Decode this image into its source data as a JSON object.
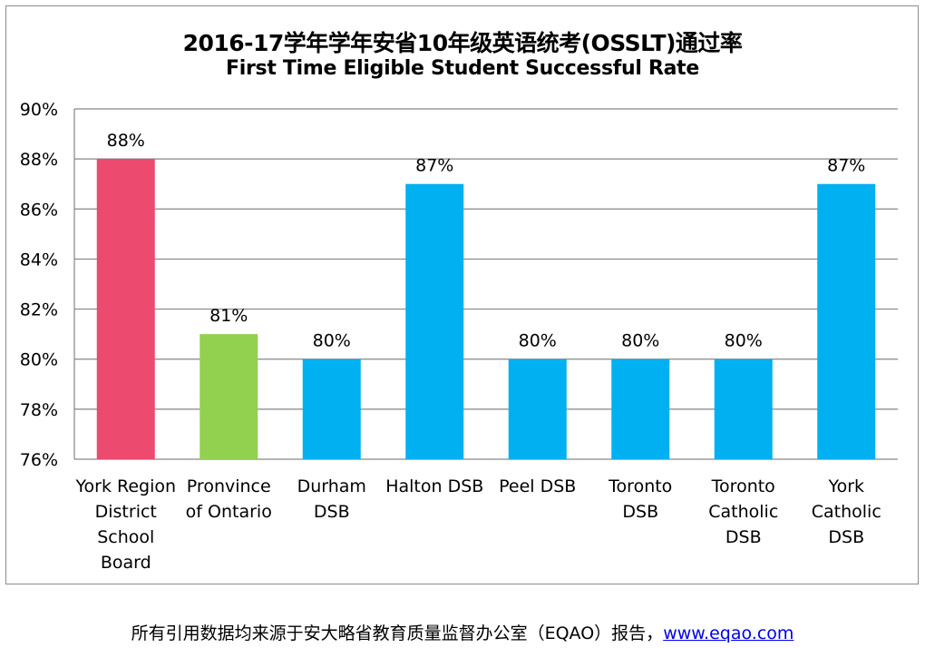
{
  "chart_data": {
    "type": "bar",
    "title": "2016-17学年学年安省10年级英语统考(OSSLT)通过率",
    "subtitle": "First Time Eligible Student Successful Rate",
    "categories": [
      [
        "York Region",
        "District",
        "School",
        "Board"
      ],
      [
        "Pronvince",
        "of Ontario"
      ],
      [
        "Durham",
        "DSB"
      ],
      [
        "Halton DSB"
      ],
      [
        "Peel DSB"
      ],
      [
        "Toronto",
        "DSB"
      ],
      [
        "Toronto",
        "Catholic",
        "DSB"
      ],
      [
        "York",
        "Catholic",
        "DSB"
      ]
    ],
    "values": [
      88,
      81,
      80,
      87,
      80,
      80,
      80,
      87
    ],
    "data_labels": [
      "88%",
      "81%",
      "80%",
      "87%",
      "80%",
      "80%",
      "80%",
      "87%"
    ],
    "bar_colors": [
      "#EC4A6E",
      "#92D050",
      "#00B0F0",
      "#00B0F0",
      "#00B0F0",
      "#00B0F0",
      "#00B0F0",
      "#00B0F0"
    ],
    "ylim": [
      76,
      90
    ],
    "yticks": [
      76,
      78,
      80,
      82,
      84,
      86,
      88,
      90
    ],
    "ytick_labels": [
      "76%",
      "78%",
      "80%",
      "82%",
      "84%",
      "86%",
      "88%",
      "90%"
    ],
    "xlabel": "",
    "ylabel": "",
    "grid": true,
    "legend": "none"
  },
  "footer": {
    "text": "所有引用数据均来源于安大略省教育质量监督办公室（EQAO）报告，",
    "link": "www.eqao.com"
  }
}
